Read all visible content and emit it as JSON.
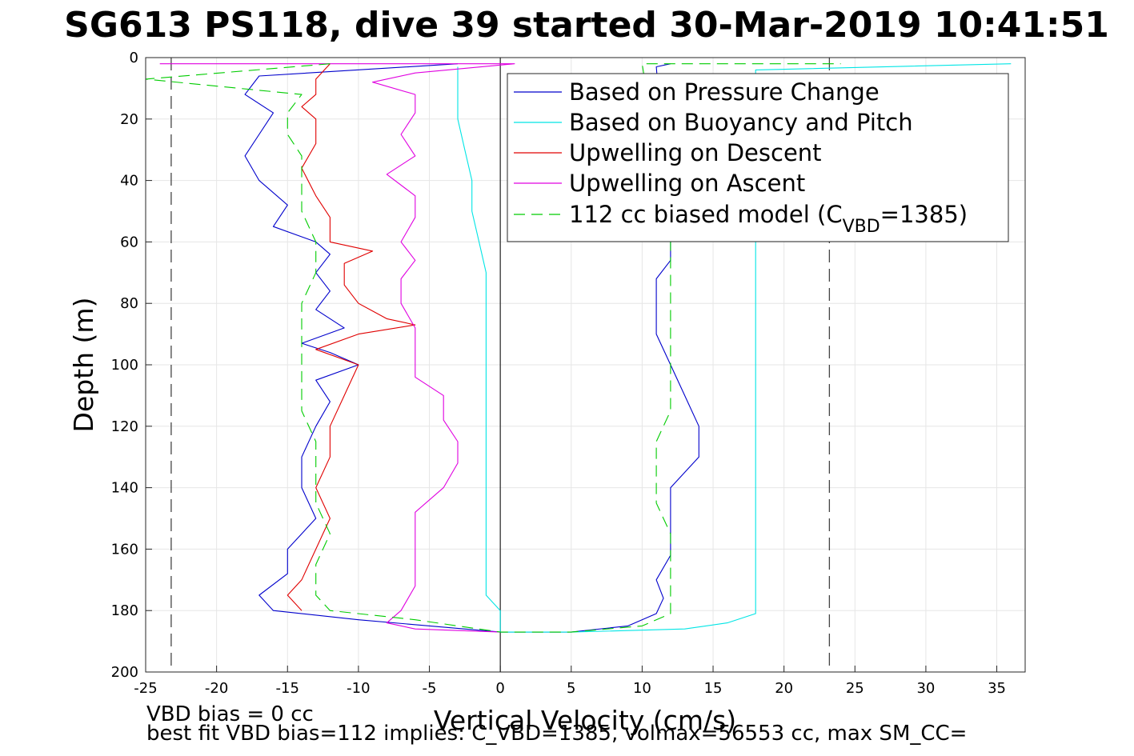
{
  "chart_data": {
    "type": "line",
    "title": "SG613 PS118, dive 39 started 30-Mar-2019 10:41:51",
    "xlabel": "Vertical Velocity (cm/s)",
    "ylabel": "Depth (m)",
    "xlim": [
      -25,
      37
    ],
    "ylim": [
      200,
      0
    ],
    "x_ticks": [
      -25,
      -20,
      -15,
      -10,
      -5,
      0,
      5,
      10,
      15,
      20,
      25,
      30,
      35
    ],
    "y_ticks": [
      0,
      20,
      40,
      60,
      80,
      100,
      120,
      140,
      160,
      180,
      200
    ],
    "grid": true,
    "legend_position": "top-right",
    "reference_lines": [
      -23.2,
      23.2
    ],
    "zero_line": 0,
    "legend": [
      {
        "label": "Based on Pressure Change",
        "color": "#0000cc",
        "dash": "solid"
      },
      {
        "label": "Based on Buoyancy and Pitch",
        "color": "#00e5e5",
        "dash": "solid"
      },
      {
        "label": "Upwelling on Descent",
        "color": "#e00000",
        "dash": "solid"
      },
      {
        "label": "Upwelling on Ascent",
        "color": "#e000e0",
        "dash": "solid"
      },
      {
        "label_prefix": "112 cc biased model (C",
        "label_sub": "VBD",
        "label_suffix": "=1385)",
        "color": "#00cc00",
        "dash": "dashed"
      }
    ],
    "series": [
      {
        "color": "#0000cc",
        "points": [
          [
            -3,
            2
          ],
          [
            -17,
            6
          ],
          [
            -18,
            12
          ],
          [
            -16,
            18
          ],
          [
            -17,
            25
          ],
          [
            -18,
            32
          ],
          [
            -17,
            40
          ],
          [
            -15,
            48
          ],
          [
            -16,
            55
          ],
          [
            -13,
            60
          ],
          [
            -12,
            64
          ],
          [
            -13,
            70
          ],
          [
            -12,
            76
          ],
          [
            -13,
            82
          ],
          [
            -11,
            88
          ],
          [
            -14,
            93
          ],
          [
            -12,
            96
          ],
          [
            -10,
            100
          ],
          [
            -13,
            105
          ],
          [
            -12,
            112
          ],
          [
            -13,
            120
          ],
          [
            -14,
            130
          ],
          [
            -14,
            140
          ],
          [
            -13,
            150
          ],
          [
            -15,
            160
          ],
          [
            -15,
            168
          ],
          [
            -17,
            175
          ],
          [
            -16,
            180
          ],
          [
            -10,
            183
          ],
          [
            0,
            187
          ],
          [
            5,
            187
          ],
          [
            9,
            185
          ],
          [
            11,
            181
          ],
          [
            11.5,
            176
          ],
          [
            11,
            170
          ],
          [
            12,
            162
          ],
          [
            12,
            150
          ],
          [
            12,
            140
          ],
          [
            14,
            130
          ],
          [
            14,
            120
          ],
          [
            13,
            110
          ],
          [
            12,
            100
          ],
          [
            11,
            90
          ],
          [
            11,
            80
          ],
          [
            11,
            72
          ],
          [
            12,
            66
          ],
          [
            12,
            60
          ],
          [
            11,
            3
          ],
          [
            12,
            2
          ]
        ]
      },
      {
        "color": "#00e5e5",
        "points": [
          [
            -3,
            3
          ],
          [
            -3,
            6
          ],
          [
            -3,
            12
          ],
          [
            -3,
            20
          ],
          [
            -2.5,
            30
          ],
          [
            -2,
            40
          ],
          [
            -2,
            50
          ],
          [
            -1.5,
            60
          ],
          [
            -1,
            70
          ],
          [
            -1,
            80
          ],
          [
            -1,
            90
          ],
          [
            -1,
            100
          ],
          [
            -1,
            120
          ],
          [
            -1,
            140
          ],
          [
            -1,
            160
          ],
          [
            -1,
            175
          ],
          [
            0,
            180
          ],
          [
            0,
            187
          ],
          [
            5,
            187
          ],
          [
            13,
            186
          ],
          [
            16,
            184
          ],
          [
            18,
            181
          ],
          [
            18,
            175
          ],
          [
            18,
            165
          ],
          [
            18,
            155
          ],
          [
            18,
            145
          ],
          [
            18,
            135
          ],
          [
            18,
            120
          ],
          [
            18,
            110
          ],
          [
            18,
            100
          ],
          [
            18,
            90
          ],
          [
            18,
            80
          ],
          [
            18,
            70
          ],
          [
            18,
            62
          ],
          [
            18,
            4
          ],
          [
            36,
            2
          ]
        ]
      },
      {
        "color": "#e00000",
        "points": [
          [
            -12,
            2
          ],
          [
            -13,
            7
          ],
          [
            -13,
            12
          ],
          [
            -14,
            16
          ],
          [
            -13,
            20
          ],
          [
            -13,
            28
          ],
          [
            -14,
            36
          ],
          [
            -13,
            45
          ],
          [
            -12,
            52
          ],
          [
            -12,
            60
          ],
          [
            -9,
            63
          ],
          [
            -11,
            67
          ],
          [
            -11,
            74
          ],
          [
            -10,
            80
          ],
          [
            -8,
            85
          ],
          [
            -6,
            87
          ],
          [
            -10,
            90
          ],
          [
            -13,
            95
          ],
          [
            -10,
            100
          ],
          [
            -11,
            110
          ],
          [
            -12,
            120
          ],
          [
            -12,
            130
          ],
          [
            -13,
            140
          ],
          [
            -12,
            150
          ],
          [
            -13,
            160
          ],
          [
            -14,
            170
          ],
          [
            -15,
            175
          ],
          [
            -14,
            180
          ]
        ]
      },
      {
        "color": "#e000e0",
        "points": [
          [
            -24,
            2
          ],
          [
            1,
            2
          ],
          [
            -6,
            5
          ],
          [
            -9,
            8
          ],
          [
            -6,
            12
          ],
          [
            -6,
            18
          ],
          [
            -7,
            25
          ],
          [
            -6,
            32
          ],
          [
            -8,
            38
          ],
          [
            -6,
            45
          ],
          [
            -6,
            52
          ],
          [
            -7,
            60
          ],
          [
            -6,
            66
          ],
          [
            -7,
            72
          ],
          [
            -7,
            80
          ],
          [
            -6,
            88
          ],
          [
            -6,
            96
          ],
          [
            -6,
            104
          ],
          [
            -4,
            110
          ],
          [
            -4,
            118
          ],
          [
            -3,
            125
          ],
          [
            -3,
            132
          ],
          [
            -4,
            140
          ],
          [
            -6,
            148
          ],
          [
            -6,
            156
          ],
          [
            -6,
            164
          ],
          [
            -6,
            172
          ],
          [
            -7,
            180
          ],
          [
            -8,
            184
          ],
          [
            -6,
            186
          ],
          [
            0,
            187
          ]
        ]
      },
      {
        "color": "#00cc00",
        "dashed": true,
        "points": [
          [
            -12,
            2
          ],
          [
            -25,
            7
          ],
          [
            -14,
            12
          ],
          [
            -15,
            18
          ],
          [
            -15,
            25
          ],
          [
            -14,
            32
          ],
          [
            -14,
            40
          ],
          [
            -14,
            50
          ],
          [
            -13,
            60
          ],
          [
            -13,
            70
          ],
          [
            -14,
            80
          ],
          [
            -14,
            88
          ],
          [
            -14,
            95
          ],
          [
            -14,
            105
          ],
          [
            -14,
            115
          ],
          [
            -13,
            125
          ],
          [
            -13,
            135
          ],
          [
            -13,
            145
          ],
          [
            -12,
            155
          ],
          [
            -13,
            165
          ],
          [
            -13,
            175
          ],
          [
            -12,
            180
          ],
          [
            -6,
            183
          ],
          [
            0,
            187
          ],
          [
            5,
            187
          ],
          [
            10,
            185
          ],
          [
            12,
            181
          ],
          [
            12,
            175
          ],
          [
            12,
            165
          ],
          [
            12,
            155
          ],
          [
            11,
            145
          ],
          [
            11,
            135
          ],
          [
            11,
            125
          ],
          [
            12,
            115
          ],
          [
            12,
            105
          ],
          [
            12,
            95
          ],
          [
            12,
            85
          ],
          [
            12,
            75
          ],
          [
            12,
            65
          ],
          [
            12,
            60
          ],
          [
            10,
            2
          ],
          [
            24,
            2
          ]
        ]
      }
    ]
  },
  "footer": {
    "line1": "VBD bias = 0 cc",
    "line2": "best fit VBD bias=112 implies: C_VBD=1385, volmax=56553 cc, max SM_CC="
  }
}
